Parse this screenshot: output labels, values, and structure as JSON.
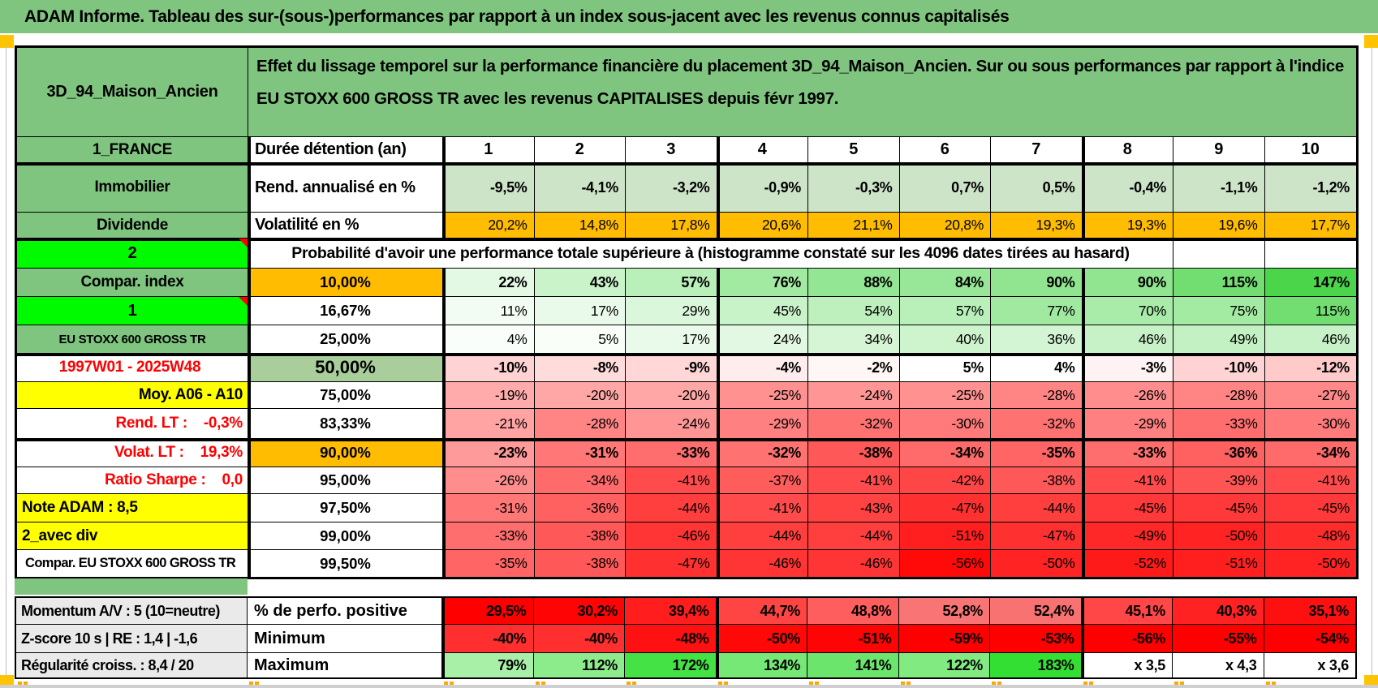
{
  "title_bar": {
    "text": "ADAM Informe. Tableau des sur-(sous-)performances par rapport à un index sous-jacent avec les revenus connus capitalisés"
  },
  "header": {
    "name": "3D_94_Maison_Ancien",
    "description": "Effet du lissage temporel sur la performance financière du placement 3D_94_Maison_Ancien. Sur ou sous performances par rapport à l'indice EU STOXX 600 GROSS TR avec les revenus CAPITALISES depuis févr 1997."
  },
  "colors": {
    "band_green": "#7FC57F",
    "bright_green": "#00FB00",
    "yellow": "#FFFF00",
    "orange": "#FFBC00",
    "olive": "#A9CE9B",
    "red_text": "#FF0000",
    "gray_label": "#EAEAEA",
    "corner_orange": "#FFC400",
    "dash_orange": "#FFA800",
    "light_green_cell": "#CDE4C8"
  },
  "main_rows": [
    {
      "type": "cols",
      "a": {
        "t": "1_FRANCE",
        "cls": "green"
      },
      "b": {
        "t": "Durée détention (an)",
        "cls": "blabel"
      },
      "cells": [
        {
          "t": "1"
        },
        {
          "t": "2"
        },
        {
          "t": "3"
        },
        {
          "t": "4"
        },
        {
          "t": "5"
        },
        {
          "t": "6"
        },
        {
          "t": "7"
        },
        {
          "t": "8"
        },
        {
          "t": "9"
        },
        {
          "t": "10"
        }
      ]
    },
    {
      "a": {
        "t": "Immobilier",
        "cls": "green"
      },
      "b": {
        "t": "Rend. annualisé en %",
        "cls": "blabel"
      },
      "bold": true,
      "cells": [
        {
          "t": "-9,5%",
          "c": "#CDE4C8"
        },
        {
          "t": "-4,1%",
          "c": "#CDE4C8"
        },
        {
          "t": "-3,2%",
          "c": "#CDE4C8"
        },
        {
          "t": "-0,9%",
          "c": "#CDE4C8"
        },
        {
          "t": "-0,3%",
          "c": "#CDE4C8"
        },
        {
          "t": "0,7%",
          "c": "#CDE4C8"
        },
        {
          "t": "0,5%",
          "c": "#CDE4C8"
        },
        {
          "t": "-0,4%",
          "c": "#CDE4C8"
        },
        {
          "t": "-1,1%",
          "c": "#CDE4C8"
        },
        {
          "t": "-1,2%",
          "c": "#CDE4C8"
        }
      ]
    },
    {
      "a": {
        "t": "Dividende",
        "cls": "green"
      },
      "b": {
        "t": "Volatilité en %",
        "cls": "blabel"
      },
      "bold": false,
      "cells": [
        {
          "t": "20,2%",
          "c": "#FFBC00"
        },
        {
          "t": "14,8%",
          "c": "#FFBC00"
        },
        {
          "t": "17,8%",
          "c": "#FFBC00"
        },
        {
          "t": "20,6%",
          "c": "#FFBC00"
        },
        {
          "t": "21,1%",
          "c": "#FFBC00"
        },
        {
          "t": "20,8%",
          "c": "#FFBC00"
        },
        {
          "t": "19,3%",
          "c": "#FFBC00"
        },
        {
          "t": "19,3%",
          "c": "#FFBC00"
        },
        {
          "t": "19,6%",
          "c": "#FFBC00"
        },
        {
          "t": "17,7%",
          "c": "#FFBC00"
        }
      ]
    },
    {
      "type": "merged",
      "a": {
        "t": "2",
        "cls": "bright-green",
        "corner": true
      },
      "text": "Probabilité d'avoir une performance totale supérieure à (histogramme constaté sur les 4096 dates tirées au hasard)",
      "empty": 2
    },
    {
      "a": {
        "t": "Compar. index",
        "cls": "green"
      },
      "b": {
        "t": "10,00%",
        "cls": "borange"
      },
      "bold": true,
      "cells": [
        {
          "t": "22%",
          "c": "#E4F9E4"
        },
        {
          "t": "43%",
          "c": "#CAF3CA"
        },
        {
          "t": "57%",
          "c": "#B9EFB9"
        },
        {
          "t": "76%",
          "c": "#A2E9A2"
        },
        {
          "t": "88%",
          "c": "#93E693"
        },
        {
          "t": "84%",
          "c": "#98E798"
        },
        {
          "t": "90%",
          "c": "#91E591"
        },
        {
          "t": "90%",
          "c": "#91E591"
        },
        {
          "t": "115%",
          "c": "#72DE72"
        },
        {
          "t": "147%",
          "c": "#4BD54B"
        }
      ]
    },
    {
      "a": {
        "t": "1",
        "cls": "bright-green",
        "corner": true
      },
      "b": {
        "t": "16,67%",
        "cls": "bpct"
      },
      "bold": false,
      "cells": [
        {
          "t": "11%",
          "c": "#F2FCF2"
        },
        {
          "t": "17%",
          "c": "#EAFAEA"
        },
        {
          "t": "29%",
          "c": "#DBF7DB"
        },
        {
          "t": "45%",
          "c": "#C8F2C8"
        },
        {
          "t": "54%",
          "c": "#BDF0BD"
        },
        {
          "t": "57%",
          "c": "#B9EFB9"
        },
        {
          "t": "77%",
          "c": "#A1E9A1"
        },
        {
          "t": "70%",
          "c": "#A9EBA9"
        },
        {
          "t": "75%",
          "c": "#A3EAA3"
        },
        {
          "t": "115%",
          "c": "#72DE72"
        }
      ]
    },
    {
      "a": {
        "t": "EU STOXX 600 GROSS TR",
        "cls": "green small-text"
      },
      "b": {
        "t": "25,00%",
        "cls": "bpct"
      },
      "bold": false,
      "cells": [
        {
          "t": "4%",
          "c": "#FAFEFA"
        },
        {
          "t": "5%",
          "c": "#F9FEF9"
        },
        {
          "t": "17%",
          "c": "#EAFAEA"
        },
        {
          "t": "24%",
          "c": "#E2F8E2"
        },
        {
          "t": "34%",
          "c": "#D5F5D5"
        },
        {
          "t": "40%",
          "c": "#CEF4CE"
        },
        {
          "t": "36%",
          "c": "#D3F5D3"
        },
        {
          "t": "46%",
          "c": "#C7F2C7"
        },
        {
          "t": "49%",
          "c": "#C3F1C3"
        },
        {
          "t": "46%",
          "c": "#C7F2C7"
        }
      ]
    },
    {
      "a": {
        "t": "1997W01 - 2025W48",
        "cls": "red-right",
        "center": true
      },
      "b": {
        "t": "50,00%",
        "cls": "bolive"
      },
      "bold": true,
      "cells": [
        {
          "t": "-10%",
          "c": "#FFD3D3"
        },
        {
          "t": "-8%",
          "c": "#FFDCDC"
        },
        {
          "t": "-9%",
          "c": "#FFD7D7"
        },
        {
          "t": "-4%",
          "c": "#FFEDED"
        },
        {
          "t": "-2%",
          "c": "#FFF6F6"
        },
        {
          "t": "5%",
          "c": "#FFFFFF"
        },
        {
          "t": "4%",
          "c": "#FFFFFF"
        },
        {
          "t": "-3%",
          "c": "#FFF2F2"
        },
        {
          "t": "-10%",
          "c": "#FFD3D3"
        },
        {
          "t": "-12%",
          "c": "#FFCACA"
        }
      ]
    },
    {
      "a": {
        "t": "Moy. A06 - A10",
        "cls": "yellow-right"
      },
      "b": {
        "t": "75,00%",
        "cls": "bpct"
      },
      "bold": false,
      "cells": [
        {
          "t": "-19%",
          "c": "#FFABAB"
        },
        {
          "t": "-20%",
          "c": "#FFA7A7"
        },
        {
          "t": "-20%",
          "c": "#FFA7A7"
        },
        {
          "t": "-25%",
          "c": "#FF9191"
        },
        {
          "t": "-24%",
          "c": "#FF9595"
        },
        {
          "t": "-25%",
          "c": "#FF9191"
        },
        {
          "t": "-28%",
          "c": "#FF8484"
        },
        {
          "t": "-26%",
          "c": "#FF8D8D"
        },
        {
          "t": "-28%",
          "c": "#FF8484"
        },
        {
          "t": "-27%",
          "c": "#FF8888"
        }
      ]
    },
    {
      "a": {
        "t": "Rend. LT :    -0,3%",
        "cls": "red-right"
      },
      "b": {
        "t": "83,33%",
        "cls": "bpct"
      },
      "bold": false,
      "cells": [
        {
          "t": "-21%",
          "c": "#FFA3A3"
        },
        {
          "t": "-28%",
          "c": "#FF8484"
        },
        {
          "t": "-24%",
          "c": "#FF9595"
        },
        {
          "t": "-29%",
          "c": "#FF8080"
        },
        {
          "t": "-32%",
          "c": "#FF7272"
        },
        {
          "t": "-30%",
          "c": "#FF7B7B"
        },
        {
          "t": "-32%",
          "c": "#FF7272"
        },
        {
          "t": "-29%",
          "c": "#FF8080"
        },
        {
          "t": "-33%",
          "c": "#FF6E6E"
        },
        {
          "t": "-30%",
          "c": "#FF7B7B"
        }
      ]
    },
    {
      "a": {
        "t": "Volat. LT :    19,3%",
        "cls": "red-right"
      },
      "b": {
        "t": "90,00%",
        "cls": "borange"
      },
      "bold": true,
      "cells": [
        {
          "t": "-23%",
          "c": "#FF9A9A"
        },
        {
          "t": "-31%",
          "c": "#FF7777"
        },
        {
          "t": "-33%",
          "c": "#FF6E6E"
        },
        {
          "t": "-32%",
          "c": "#FF7272"
        },
        {
          "t": "-38%",
          "c": "#FF5858"
        },
        {
          "t": "-34%",
          "c": "#FF6A6A"
        },
        {
          "t": "-35%",
          "c": "#FF6565"
        },
        {
          "t": "-33%",
          "c": "#FF6E6E"
        },
        {
          "t": "-36%",
          "c": "#FF6161"
        },
        {
          "t": "-34%",
          "c": "#FF6A6A"
        }
      ]
    },
    {
      "a": {
        "t": "Ratio Sharpe :    0,0",
        "cls": "red-right"
      },
      "b": {
        "t": "95,00%",
        "cls": "bpct"
      },
      "bold": false,
      "cells": [
        {
          "t": "-26%",
          "c": "#FF8D8D"
        },
        {
          "t": "-34%",
          "c": "#FF6A6A"
        },
        {
          "t": "-41%",
          "c": "#FF4B4B"
        },
        {
          "t": "-37%",
          "c": "#FF5C5C"
        },
        {
          "t": "-41%",
          "c": "#FF4B4B"
        },
        {
          "t": "-42%",
          "c": "#FF4646"
        },
        {
          "t": "-38%",
          "c": "#FF5858"
        },
        {
          "t": "-41%",
          "c": "#FF4B4B"
        },
        {
          "t": "-39%",
          "c": "#FF5454"
        },
        {
          "t": "-41%",
          "c": "#FF4B4B"
        }
      ]
    },
    {
      "a": {
        "t": "Note ADAM : 8,5",
        "cls": "yellow-left"
      },
      "b": {
        "t": "97,50%",
        "cls": "bpct"
      },
      "bold": false,
      "cells": [
        {
          "t": "-31%",
          "c": "#FF7777"
        },
        {
          "t": "-36%",
          "c": "#FF6161"
        },
        {
          "t": "-44%",
          "c": "#FF3E3E"
        },
        {
          "t": "-41%",
          "c": "#FF4B4B"
        },
        {
          "t": "-43%",
          "c": "#FF4242"
        },
        {
          "t": "-47%",
          "c": "#FF3030"
        },
        {
          "t": "-44%",
          "c": "#FF3E3E"
        },
        {
          "t": "-45%",
          "c": "#FF3939"
        },
        {
          "t": "-45%",
          "c": "#FF3939"
        },
        {
          "t": "-45%",
          "c": "#FF3939"
        }
      ]
    },
    {
      "a": {
        "t": "2_avec div",
        "cls": "yellow-left"
      },
      "b": {
        "t": "99,00%",
        "cls": "bpct"
      },
      "bold": false,
      "cells": [
        {
          "t": "-33%",
          "c": "#FF6E6E"
        },
        {
          "t": "-38%",
          "c": "#FF5858"
        },
        {
          "t": "-46%",
          "c": "#FF3535"
        },
        {
          "t": "-44%",
          "c": "#FF3E3E"
        },
        {
          "t": "-44%",
          "c": "#FF3E3E"
        },
        {
          "t": "-51%",
          "c": "#FF1F1F"
        },
        {
          "t": "-47%",
          "c": "#FF3030"
        },
        {
          "t": "-49%",
          "c": "#FF2828"
        },
        {
          "t": "-50%",
          "c": "#FF2323"
        },
        {
          "t": "-48%",
          "c": "#FF2C2C"
        }
      ]
    },
    {
      "a": {
        "t": "Compar. EU STOXX 600 GROSS TR",
        "cls": "white-left"
      },
      "b": {
        "t": "99,50%",
        "cls": "bpct"
      },
      "bold": false,
      "cells": [
        {
          "t": "-35%",
          "c": "#FF6565"
        },
        {
          "t": "-38%",
          "c": "#FF5858"
        },
        {
          "t": "-47%",
          "c": "#FF3030"
        },
        {
          "t": "-46%",
          "c": "#FF3535"
        },
        {
          "t": "-46%",
          "c": "#FF3535"
        },
        {
          "t": "-56%",
          "c": "#FF0909"
        },
        {
          "t": "-50%",
          "c": "#FF2323"
        },
        {
          "t": "-52%",
          "c": "#FF1A1A"
        },
        {
          "t": "-51%",
          "c": "#FF1F1F"
        },
        {
          "t": "-50%",
          "c": "#FF2323"
        }
      ]
    }
  ],
  "bottom_rows": [
    {
      "a": {
        "t": "Momentum A/V : 5 (10=neutre)"
      },
      "b": {
        "t": "% de perfo. positive"
      },
      "cells": [
        {
          "t": "29,5%",
          "c": "#FF0000"
        },
        {
          "t": "30,2%",
          "c": "#FF0404"
        },
        {
          "t": "39,4%",
          "c": "#FF1D1D"
        },
        {
          "t": "44,7%",
          "c": "#FF4444"
        },
        {
          "t": "48,8%",
          "c": "#FF5E5E"
        },
        {
          "t": "52,8%",
          "c": "#F97575"
        },
        {
          "t": "52,4%",
          "c": "#F97272"
        },
        {
          "t": "45,1%",
          "c": "#FF4747"
        },
        {
          "t": "40,3%",
          "c": "#FF2222"
        },
        {
          "t": "35,1%",
          "c": "#FF1010"
        }
      ]
    },
    {
      "a": {
        "t": "Z-score 10 s | RE : 1,4 | -1,6"
      },
      "b": {
        "t": "Minimum"
      },
      "cells": [
        {
          "t": "-40%",
          "c": "#FF2F2F"
        },
        {
          "t": "-40%",
          "c": "#FF2F2F"
        },
        {
          "t": "-48%",
          "c": "#FF1111"
        },
        {
          "t": "-50%",
          "c": "#FF0808"
        },
        {
          "t": "-51%",
          "c": "#FF0404"
        },
        {
          "t": "-59%",
          "c": "#FF0000"
        },
        {
          "t": "-53%",
          "c": "#FF0000"
        },
        {
          "t": "-56%",
          "c": "#FF0000"
        },
        {
          "t": "-55%",
          "c": "#FF0000"
        },
        {
          "t": "-54%",
          "c": "#FF0000"
        }
      ]
    },
    {
      "a": {
        "t": "Régularité croiss. : 8,4 / 20"
      },
      "b": {
        "t": "Maximum"
      },
      "cells": [
        {
          "t": "79%",
          "c": "#A8F0A8"
        },
        {
          "t": "112%",
          "c": "#8CEC8C"
        },
        {
          "t": "172%",
          "c": "#44E244"
        },
        {
          "t": "134%",
          "c": "#75E875"
        },
        {
          "t": "141%",
          "c": "#6CE56C"
        },
        {
          "t": "122%",
          "c": "#81EA81"
        },
        {
          "t": "183%",
          "c": "#33DF33"
        },
        {
          "t": "x 3,5",
          "c": "#FFFFFF"
        },
        {
          "t": "x 4,3",
          "c": "#FFFFFF"
        },
        {
          "t": "x 3,6",
          "c": "#FFFFFF"
        }
      ]
    }
  ]
}
